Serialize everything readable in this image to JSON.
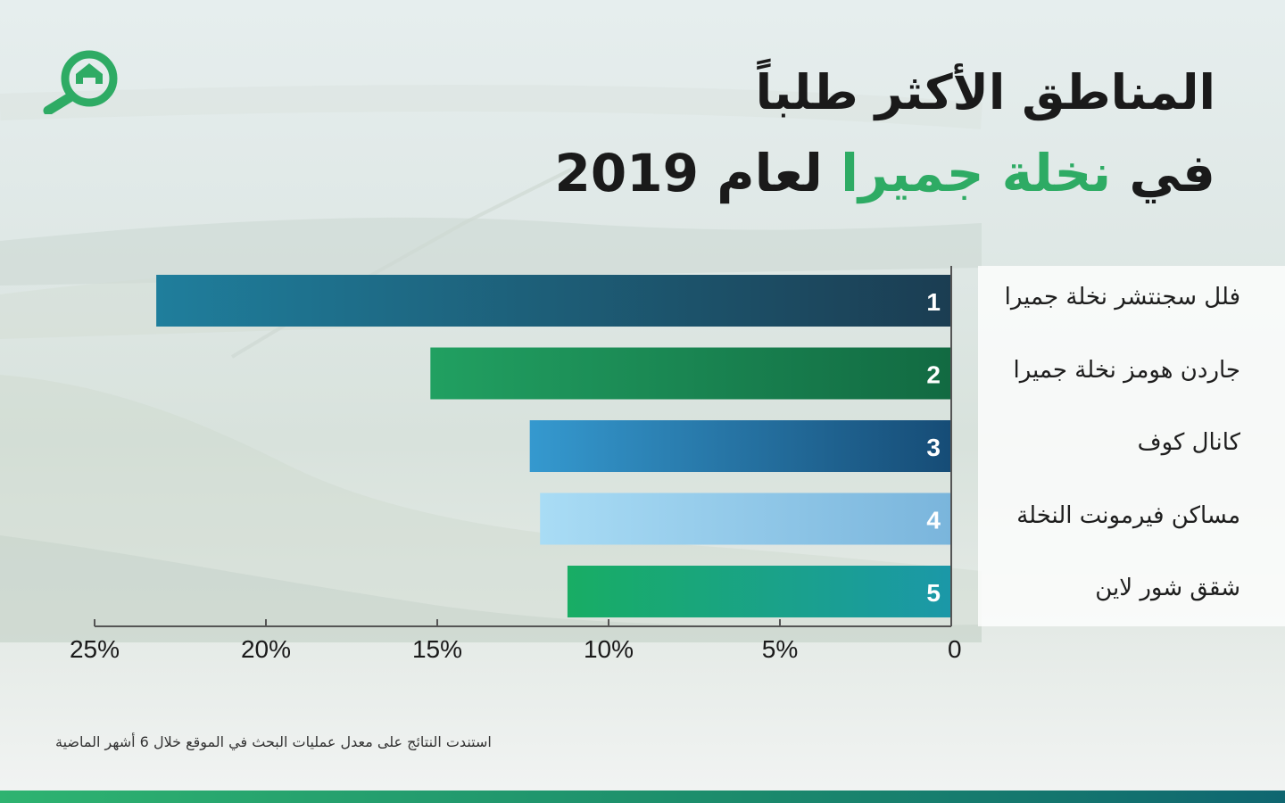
{
  "title": {
    "line1": "المناطق الأكثر طلباً",
    "line2_prefix": "في",
    "line2_highlight": "نخلة جميرا",
    "line2_suffix": "لعام 2019"
  },
  "footnote": "استندت النتائج على معدل عمليات البحث في الموقع خلال 6 أشهر الماضية",
  "logo_icon": "house-search-icon",
  "colors": {
    "title_text": "#1a1a1a",
    "highlight": "#2eab64",
    "bar_1": [
      "#1f7e9c",
      "#1b3d52"
    ],
    "bar_2": [
      "#21a061",
      "#126a42"
    ],
    "bar_3": [
      "#3599cf",
      "#164c76"
    ],
    "bar_4": [
      "#a9dcf5",
      "#7ab5dc"
    ],
    "bar_5": [
      "#18ad64",
      "#1b98a8"
    ]
  },
  "chart_data": {
    "type": "bar",
    "orientation": "horizontal",
    "direction": "right-to-left",
    "categories": [
      "فلل سجنتشر نخلة جميرا",
      "جاردن هومز نخلة جميرا",
      "كانال كوف",
      "مساكن  فيرمونت  النخلة",
      "شقق شور لاين"
    ],
    "ranks": [
      "1",
      "2",
      "3",
      "4",
      "5"
    ],
    "values": [
      23.2,
      15.2,
      12.3,
      12.0,
      11.2
    ],
    "xlim": [
      0,
      25
    ],
    "ticks": [
      0,
      5,
      10,
      15,
      20,
      25
    ],
    "tick_labels": [
      "0",
      "5%",
      "10%",
      "15%",
      "20%",
      "25%"
    ],
    "grid": false,
    "legend": "none",
    "xlabel": "",
    "ylabel": ""
  }
}
